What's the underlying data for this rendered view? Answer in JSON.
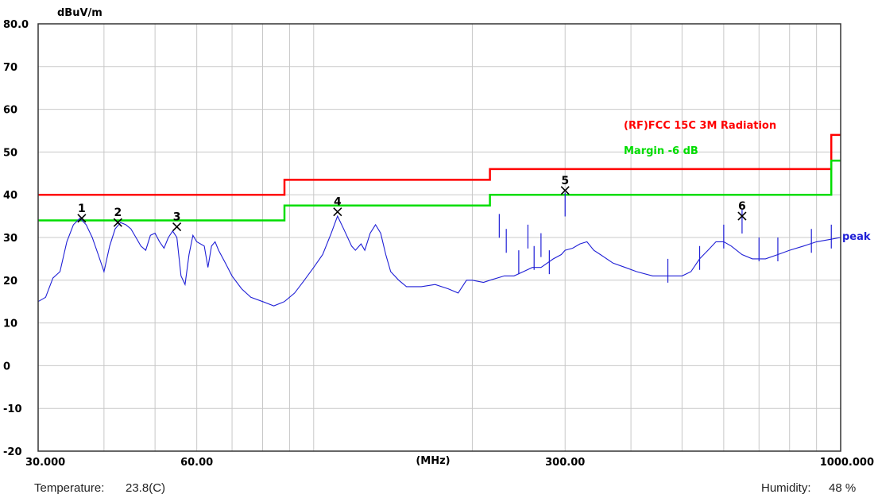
{
  "chart_data": {
    "type": "line",
    "ylabel": "dBuV/m",
    "xlabel": "(MHz)",
    "x_scale": "log",
    "xlim": [
      30,
      1000
    ],
    "ylim": [
      -20,
      80
    ],
    "y_ticks": [
      "80.0",
      "70",
      "60",
      "50",
      "40",
      "30",
      "20",
      "10",
      "0",
      "-10",
      "-20"
    ],
    "x_ticks": [
      "30.000",
      "60.00",
      "300.00",
      "1000.000"
    ],
    "grid": true,
    "colors": {
      "limit": "#ff0000",
      "margin": "#00dd00",
      "peak": "#1f1fd6",
      "grid": "#c8c8c8"
    },
    "series": [
      {
        "name": "(RF)FCC 15C 3M Radiation",
        "color": "#ff0000",
        "points": [
          [
            30,
            40
          ],
          [
            88,
            40
          ],
          [
            88,
            43.5
          ],
          [
            216,
            43.5
          ],
          [
            216,
            46
          ],
          [
            960,
            46
          ],
          [
            960,
            54
          ],
          [
            1000,
            54
          ]
        ]
      },
      {
        "name": "Margin -6 dB",
        "color": "#00dd00",
        "points": [
          [
            30,
            34
          ],
          [
            88,
            34
          ],
          [
            88,
            37.5
          ],
          [
            216,
            37.5
          ],
          [
            216,
            40
          ],
          [
            960,
            40
          ],
          [
            960,
            48
          ],
          [
            1000,
            48
          ]
        ]
      },
      {
        "name": "peak",
        "color": "#1f1fd6",
        "points": [
          [
            30,
            15
          ],
          [
            31,
            16
          ],
          [
            32,
            20.5
          ],
          [
            33,
            22
          ],
          [
            34,
            29
          ],
          [
            35,
            33
          ],
          [
            36,
            34.5
          ],
          [
            37,
            33
          ],
          [
            38,
            30
          ],
          [
            39,
            26
          ],
          [
            40,
            22
          ],
          [
            41,
            28
          ],
          [
            42,
            32
          ],
          [
            43,
            33.5
          ],
          [
            44,
            33
          ],
          [
            45,
            32
          ],
          [
            46,
            30
          ],
          [
            47,
            28
          ],
          [
            48,
            27
          ],
          [
            49,
            30.5
          ],
          [
            50,
            31
          ],
          [
            51,
            29
          ],
          [
            52,
            27.5
          ],
          [
            53,
            30
          ],
          [
            54,
            31.5
          ],
          [
            55,
            30
          ],
          [
            56,
            21
          ],
          [
            57,
            19
          ],
          [
            58,
            26
          ],
          [
            59,
            30.5
          ],
          [
            60,
            29
          ],
          [
            62,
            28
          ],
          [
            63,
            23
          ],
          [
            64,
            28
          ],
          [
            65,
            29
          ],
          [
            66,
            27
          ],
          [
            68,
            24
          ],
          [
            70,
            21
          ],
          [
            73,
            18
          ],
          [
            76,
            16
          ],
          [
            80,
            15
          ],
          [
            84,
            14
          ],
          [
            88,
            15
          ],
          [
            92,
            17
          ],
          [
            96,
            20
          ],
          [
            100,
            23
          ],
          [
            104,
            26
          ],
          [
            108,
            31
          ],
          [
            111,
            35
          ],
          [
            114,
            32
          ],
          [
            118,
            28
          ],
          [
            120,
            27
          ],
          [
            123,
            28.5
          ],
          [
            125,
            27
          ],
          [
            128,
            31
          ],
          [
            131,
            33
          ],
          [
            134,
            31
          ],
          [
            137,
            26
          ],
          [
            140,
            22
          ],
          [
            145,
            20
          ],
          [
            150,
            18.5
          ],
          [
            160,
            18.5
          ],
          [
            170,
            19
          ],
          [
            180,
            18
          ],
          [
            188,
            17
          ],
          [
            195,
            20
          ],
          [
            200,
            20
          ],
          [
            210,
            19.5
          ],
          [
            216,
            20
          ],
          [
            230,
            21
          ],
          [
            240,
            21
          ],
          [
            250,
            22
          ],
          [
            260,
            23
          ],
          [
            270,
            23
          ],
          [
            285,
            25
          ],
          [
            295,
            26
          ],
          [
            300,
            27
          ],
          [
            310,
            27.5
          ],
          [
            320,
            28.5
          ],
          [
            330,
            29
          ],
          [
            340,
            27
          ],
          [
            350,
            26
          ],
          [
            370,
            24
          ],
          [
            390,
            23
          ],
          [
            410,
            22
          ],
          [
            440,
            21
          ],
          [
            470,
            21
          ],
          [
            500,
            21
          ],
          [
            520,
            22
          ],
          [
            540,
            25
          ],
          [
            560,
            27
          ],
          [
            580,
            29
          ],
          [
            600,
            29
          ],
          [
            620,
            28
          ],
          [
            650,
            26
          ],
          [
            680,
            25
          ],
          [
            720,
            25
          ],
          [
            760,
            26
          ],
          [
            800,
            27
          ],
          [
            850,
            28
          ],
          [
            900,
            29
          ],
          [
            950,
            29.5
          ],
          [
            1000,
            30
          ]
        ]
      }
    ],
    "spikes": [
      [
        225,
        35.5
      ],
      [
        232,
        32
      ],
      [
        245,
        27
      ],
      [
        255,
        33
      ],
      [
        262,
        28
      ],
      [
        270,
        31
      ],
      [
        280,
        27
      ],
      [
        300,
        40.5
      ],
      [
        470,
        25
      ],
      [
        540,
        28
      ],
      [
        600,
        33
      ],
      [
        650,
        36.5
      ],
      [
        700,
        30
      ],
      [
        760,
        30
      ],
      [
        880,
        32
      ],
      [
        960,
        33
      ]
    ],
    "markers": [
      {
        "label": "1",
        "x": 36.3,
        "y": 34.5
      },
      {
        "label": "2",
        "x": 42.5,
        "y": 33.5
      },
      {
        "label": "3",
        "x": 55.0,
        "y": 32.5
      },
      {
        "label": "4",
        "x": 111,
        "y": 36
      },
      {
        "label": "5",
        "x": 300,
        "y": 41
      },
      {
        "label": "6",
        "x": 650,
        "y": 35
      }
    ]
  },
  "footer": {
    "temperature_label": "Temperature:",
    "temperature_value": "23.8(C)",
    "humidity_label": "Humidity:",
    "humidity_value": "48 %"
  }
}
